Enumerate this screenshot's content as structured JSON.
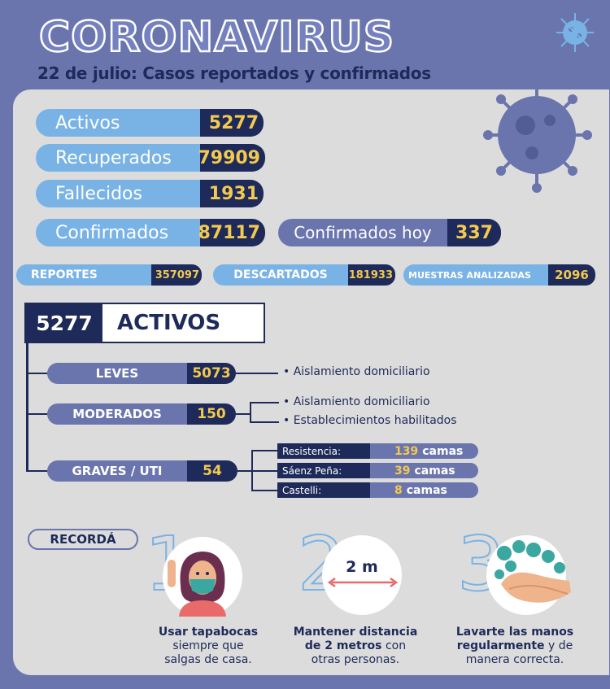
{
  "header": {
    "title": "CORONAVIRUS",
    "subtitle": "22 de julio: Casos reportados y confirmados"
  },
  "stats": [
    {
      "label": "Activos",
      "value": "5277"
    },
    {
      "label": "Recuperados",
      "value": "79909"
    },
    {
      "label": "Fallecidos",
      "value": "1931"
    },
    {
      "label": "Confirmados",
      "value": "87117"
    }
  ],
  "today": {
    "label": "Confirmados hoy",
    "value": "337"
  },
  "small_stats": [
    {
      "label": "REPORTES",
      "value": "357097"
    },
    {
      "label": "DESCARTADOS",
      "value": "181933"
    },
    {
      "label": "MUESTRAS ANALIZADAS",
      "value": "2096"
    }
  ],
  "activos": {
    "number": "5277",
    "label": "ACTIVOS"
  },
  "categories": [
    {
      "label": "LEVES",
      "value": "5073"
    },
    {
      "label": "MODERADOS",
      "value": "150"
    },
    {
      "label": "GRAVES / UTI",
      "value": "54"
    }
  ],
  "notes": {
    "leves": "• Aislamiento domiciliario",
    "moderados_1": "• Aislamiento domiciliario",
    "moderados_2": "• Establecimientos habilitados"
  },
  "hospitals": [
    {
      "name": "Resistencia:",
      "beds": "139",
      "unit": "camas"
    },
    {
      "name": "Sáenz Peña:",
      "beds": "39",
      "unit": "camas"
    },
    {
      "name": "Castelli:",
      "beds": "8",
      "unit": "camas"
    }
  ],
  "reminder": {
    "title": "RECORDÁ",
    "distance_label": "2 m",
    "tips": [
      {
        "number": "1",
        "bold": "Usar tapabocas",
        "rest_1": "siempre que",
        "rest_2": "salgas de casa."
      },
      {
        "number": "2",
        "bold": "Mantener distancia",
        "bold_2": "de 2 metros",
        "rest_1": " con",
        "rest_2": "otras personas."
      },
      {
        "number": "3",
        "bold": "Lavarte las manos",
        "bold_2": "regularmente",
        "rest_1": " y de",
        "rest_2": "manera correcta."
      }
    ]
  },
  "colors": {
    "navy": "#1d2a5a",
    "light_blue": "#79b3e6",
    "purple": "#6b75ad",
    "yellow": "#f3c94e",
    "panel": "#dcdcdc"
  }
}
